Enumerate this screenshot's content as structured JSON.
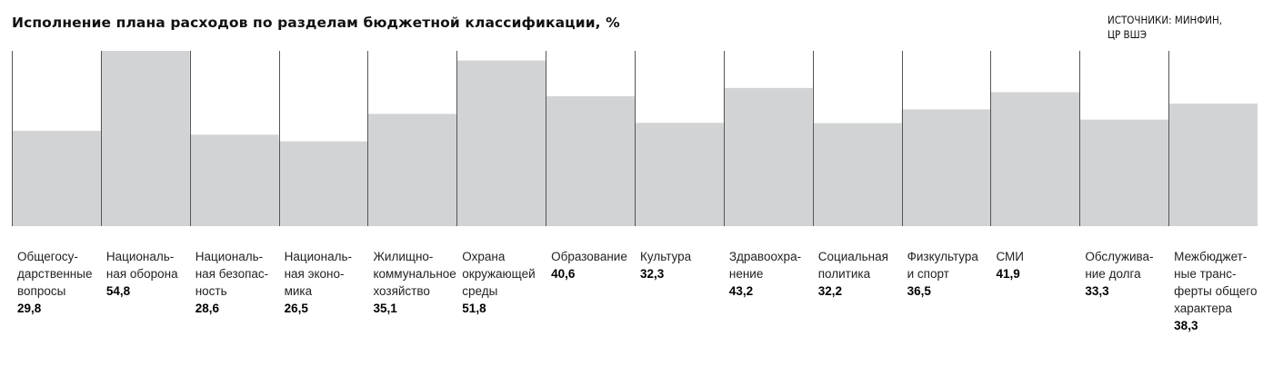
{
  "header": {
    "title": "Исполнение плана расходов по разделам бюджетной классификации, %",
    "source_line1": "ИСТОЧНИКИ: МИНФИН,",
    "source_line2": "ЦР ВШЭ"
  },
  "colors": {
    "bar": "#d2d3d5",
    "axis": "#555555"
  },
  "chart_data": {
    "type": "bar",
    "title": "Исполнение плана расходов по разделам бюджетной классификации, %",
    "ylim": [
      0,
      54.8
    ],
    "grid": false,
    "categories": [
      "Общегосу-\nдарственные\nвопросы",
      "Националь-\nная оборона",
      "Националь-\nная безопас-\nность",
      "Националь-\nная эконо-\nмика",
      "Жилищно-\nкоммунальное\nхозяйство",
      "Охрана\nокружающей\nсреды",
      "Образование",
      "Культура",
      "Здравоохра-\nнение",
      "Социальная\nполитика",
      "Физкультура\nи спорт",
      "СМИ",
      "Обслужива-\nние долга",
      "Межбюджет-\nные транс-\nферты общего\nхарактера"
    ],
    "values": [
      29.8,
      54.8,
      28.6,
      26.5,
      35.1,
      51.8,
      40.6,
      32.3,
      43.2,
      32.2,
      36.5,
      41.9,
      33.3,
      38.3
    ],
    "value_labels": [
      "29,8",
      "54,8",
      "28,6",
      "26,5",
      "35,1",
      "51,8",
      "40,6",
      "32,3",
      "43,2",
      "32,2",
      "36,5",
      "41,9",
      "33,3",
      "38,3"
    ]
  }
}
